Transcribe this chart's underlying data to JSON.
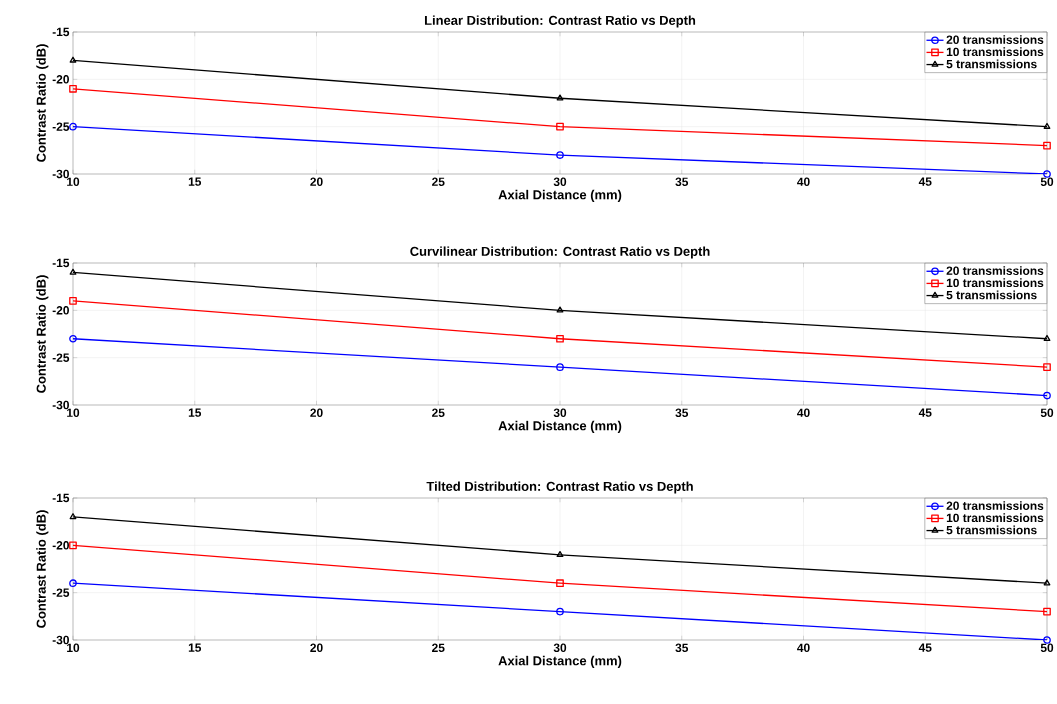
{
  "chart_data": [
    {
      "type": "line",
      "title": "Linear Distribution: Contrast Ratio vs Depth",
      "xlabel": "Axial Distance (mm)",
      "ylabel": "Contrast Ratio (dB)",
      "x": [
        10,
        30,
        50
      ],
      "xlim": [
        10,
        50
      ],
      "ylim": [
        -30,
        -15
      ],
      "xticks": [
        10,
        15,
        20,
        25,
        30,
        35,
        40,
        45,
        50
      ],
      "yticks": [
        -30,
        -25,
        -20,
        -15
      ],
      "grid": true,
      "legend": "top right",
      "line_style": "solid",
      "series": [
        {
          "name": "20 transmissions",
          "color": "#0000ff",
          "marker": "circle",
          "values": [
            -25,
            -28,
            -30
          ]
        },
        {
          "name": "10 transmissions",
          "color": "#ff0000",
          "marker": "square",
          "values": [
            -21,
            -25,
            -27
          ]
        },
        {
          "name": "5 transmissions",
          "color": "#000000",
          "marker": "triangle",
          "values": [
            -18,
            -22,
            -25
          ]
        }
      ]
    },
    {
      "type": "line",
      "title": "Curvilinear Distribution: Contrast Ratio vs Depth",
      "xlabel": "Axial Distance (mm)",
      "ylabel": "Contrast Ratio (dB)",
      "x": [
        10,
        30,
        50
      ],
      "xlim": [
        10,
        50
      ],
      "ylim": [
        -30,
        -15
      ],
      "xticks": [
        10,
        15,
        20,
        25,
        30,
        35,
        40,
        45,
        50
      ],
      "yticks": [
        -30,
        -25,
        -20,
        -15
      ],
      "grid": true,
      "legend": "top right",
      "line_style": "solid",
      "series": [
        {
          "name": "20 transmissions",
          "color": "#0000ff",
          "marker": "circle",
          "values": [
            -23,
            -26,
            -29
          ]
        },
        {
          "name": "10 transmissions",
          "color": "#ff0000",
          "marker": "square",
          "values": [
            -19,
            -23,
            -26
          ]
        },
        {
          "name": "5 transmissions",
          "color": "#000000",
          "marker": "triangle",
          "values": [
            -16,
            -20,
            -23
          ]
        }
      ]
    },
    {
      "type": "line",
      "title": "Tilted Distribution: Contrast Ratio vs Depth",
      "xlabel": "Axial Distance (mm)",
      "ylabel": "Contrast Ratio (dB)",
      "x": [
        10,
        30,
        50
      ],
      "xlim": [
        10,
        50
      ],
      "ylim": [
        -30,
        -15
      ],
      "xticks": [
        10,
        15,
        20,
        25,
        30,
        35,
        40,
        45,
        50
      ],
      "yticks": [
        -30,
        -25,
        -20,
        -15
      ],
      "grid": true,
      "legend": "top right",
      "line_style": "solid",
      "series": [
        {
          "name": "20 transmissions",
          "color": "#0000ff",
          "marker": "circle",
          "values": [
            -24,
            -27,
            -30
          ]
        },
        {
          "name": "10 transmissions",
          "color": "#ff0000",
          "marker": "square",
          "values": [
            -20,
            -24,
            -27
          ]
        },
        {
          "name": "5 transmissions",
          "color": "#000000",
          "marker": "triangle",
          "values": [
            -17,
            -21,
            -24
          ]
        }
      ]
    }
  ]
}
